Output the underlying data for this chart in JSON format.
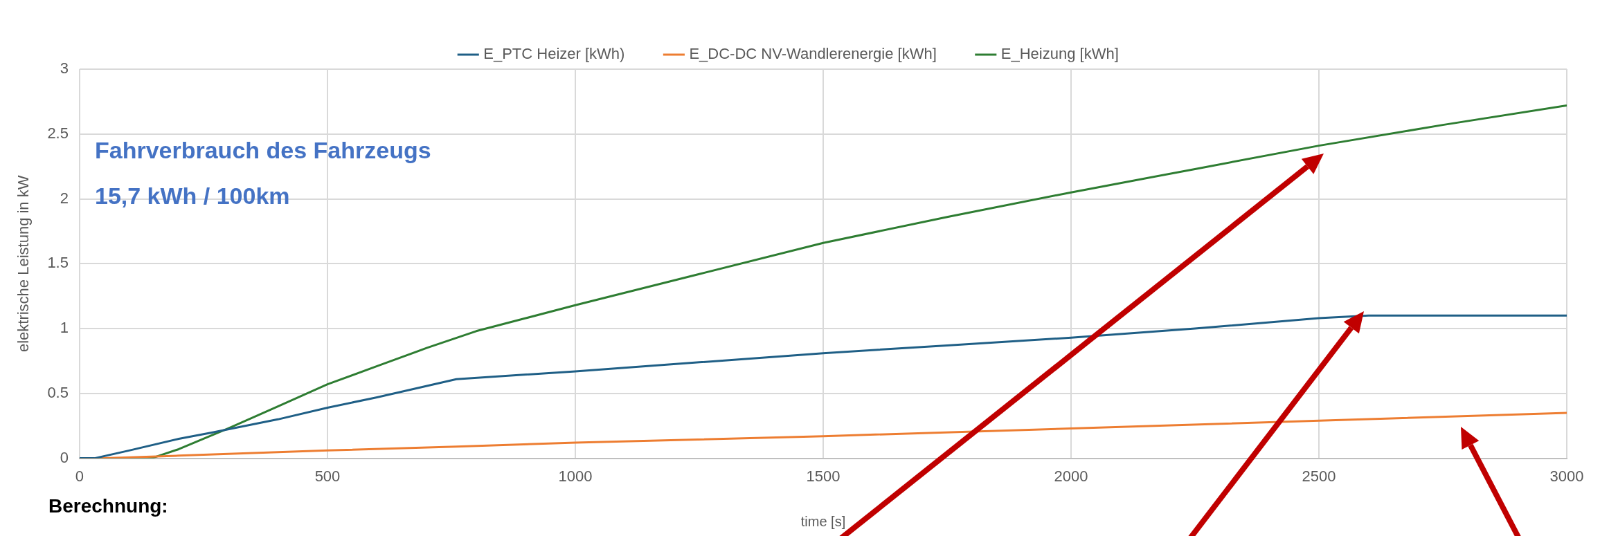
{
  "chart_data": {
    "type": "line",
    "xlabel": "time [s]",
    "ylabel": "elektrische Leistung in kW",
    "annotations": [
      "Fahrverbrauch des Fahrzeugs",
      "15,7 kWh / 100km",
      "Berechnung:"
    ],
    "series": [
      {
        "name": "E_PTC Heizer [kWh)",
        "color": "#1f5f86",
        "x": [
          0,
          30,
          100,
          200,
          270,
          400,
          500,
          600,
          760,
          1000,
          1250,
          1500,
          1750,
          2000,
          2250,
          2500,
          2600,
          3000
        ],
        "values": [
          0,
          0,
          0.06,
          0.15,
          0.2,
          0.3,
          0.39,
          0.47,
          0.61,
          0.67,
          0.74,
          0.81,
          0.87,
          0.93,
          1.0,
          1.08,
          1.1,
          1.1
        ]
      },
      {
        "name": "E_DC-DC NV-Wandlerenergie [kWh]",
        "color": "#ed7d31",
        "x": [
          0,
          50,
          200,
          500,
          760,
          1000,
          1500,
          2000,
          2500,
          3000
        ],
        "values": [
          0,
          0,
          0.02,
          0.06,
          0.09,
          0.12,
          0.17,
          0.23,
          0.29,
          0.35
        ]
      },
      {
        "name": "E_Heizung [kWh]",
        "color": "#2e7d32",
        "x": [
          0,
          145,
          200,
          300,
          400,
          500,
          600,
          700,
          800,
          900,
          1000,
          1250,
          1500,
          1750,
          2000,
          2250,
          2500,
          2750,
          3000
        ],
        "values": [
          0,
          0,
          0.07,
          0.23,
          0.4,
          0.57,
          0.71,
          0.85,
          0.98,
          1.08,
          1.18,
          1.42,
          1.66,
          1.86,
          2.05,
          2.23,
          2.41,
          2.57,
          2.72
        ]
      }
    ],
    "xlim": [
      0,
      3000
    ],
    "xticks": [
      0,
      500,
      1000,
      1500,
      2000,
      2500,
      3000
    ],
    "ylim": [
      0,
      3
    ],
    "yticks": [
      0,
      0.5,
      1,
      1.5,
      2,
      2.5,
      3
    ],
    "grid": true,
    "legend": "top",
    "marker": "none",
    "line_style": "solid"
  }
}
